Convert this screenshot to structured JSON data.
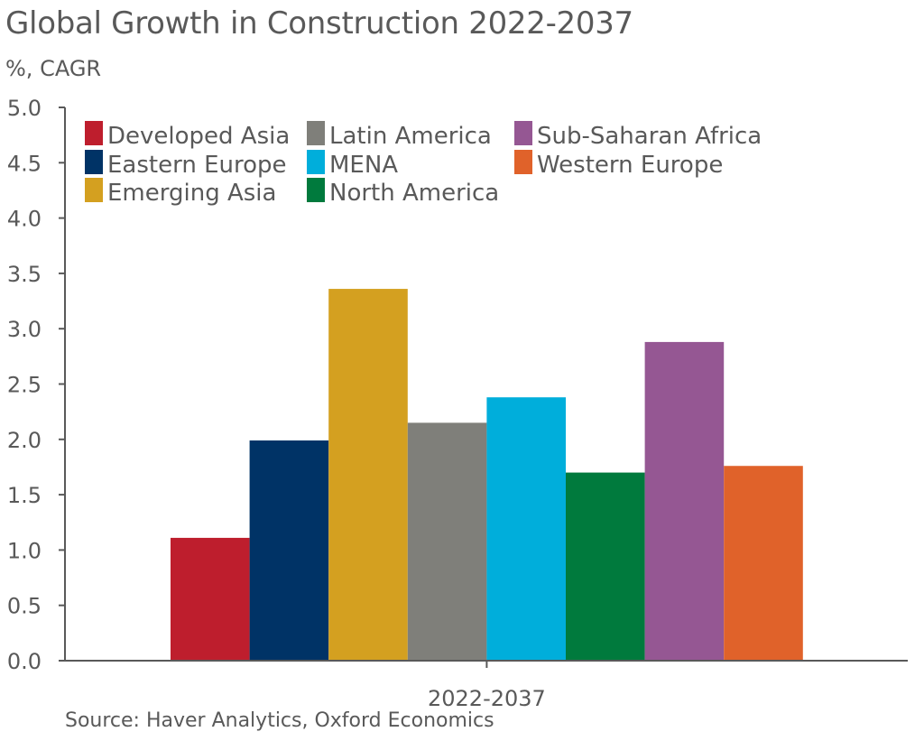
{
  "title": "Global Growth in Construction 2022-2037",
  "units": "%, CAGR",
  "source": "Source: Haver Analytics, Oxford Economics",
  "chart_data": {
    "type": "bar",
    "categories": [
      "2022-2037"
    ],
    "ylim": [
      0,
      5.0
    ],
    "yticks": [
      "0.0",
      "0.5",
      "1.0",
      "1.5",
      "2.0",
      "2.5",
      "3.0",
      "3.5",
      "4.0",
      "4.5",
      "5.0"
    ],
    "grid": false,
    "legend_position": "top-left",
    "series": [
      {
        "name": "Developed Asia",
        "values": [
          1.11
        ],
        "color": "#BE1E2D"
      },
      {
        "name": "Eastern Europe",
        "values": [
          1.99
        ],
        "color": "#003366"
      },
      {
        "name": "Emerging Asia",
        "values": [
          3.36
        ],
        "color": "#D4A020"
      },
      {
        "name": "Latin America",
        "values": [
          2.15
        ],
        "color": "#7F7F7A"
      },
      {
        "name": "MENA",
        "values": [
          2.38
        ],
        "color": "#00AEDB"
      },
      {
        "name": "North America",
        "values": [
          1.7
        ],
        "color": "#007A3D"
      },
      {
        "name": "Sub-Saharan Africa",
        "values": [
          2.88
        ],
        "color": "#955793"
      },
      {
        "name": "Western Europe",
        "values": [
          1.76
        ],
        "color": "#E0622A"
      }
    ]
  }
}
